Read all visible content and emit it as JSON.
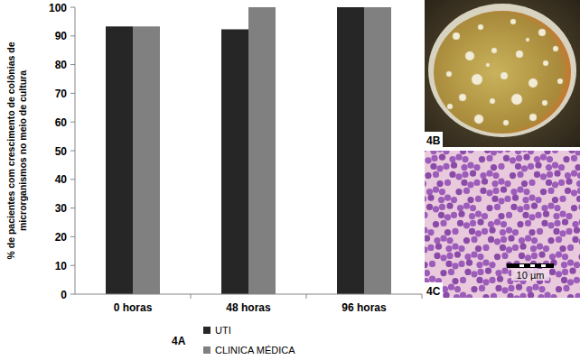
{
  "chart_data": {
    "type": "bar",
    "y_label": "% de pacientes com crescimento de colônias de microrganismos no meio de cultura",
    "categories": [
      "0 horas",
      "48 horas",
      "96 horas"
    ],
    "series": [
      {
        "name": "UTI",
        "color": "#262626",
        "values": [
          93.3,
          92.3,
          100
        ]
      },
      {
        "name": "CLINICA MÉDICA",
        "color": "#808080",
        "values": [
          93.3,
          100,
          100
        ]
      }
    ],
    "ylim": [
      0,
      100
    ],
    "yticks": [
      0,
      10,
      20,
      30,
      40,
      50,
      60,
      70,
      80,
      90,
      100
    ],
    "grid": false,
    "legend": "bottom"
  },
  "panels": {
    "chart_label": "4A",
    "photo_b": {
      "label": "4B"
    },
    "photo_c": {
      "label": "4C",
      "scale_bar": "10 µm"
    }
  }
}
